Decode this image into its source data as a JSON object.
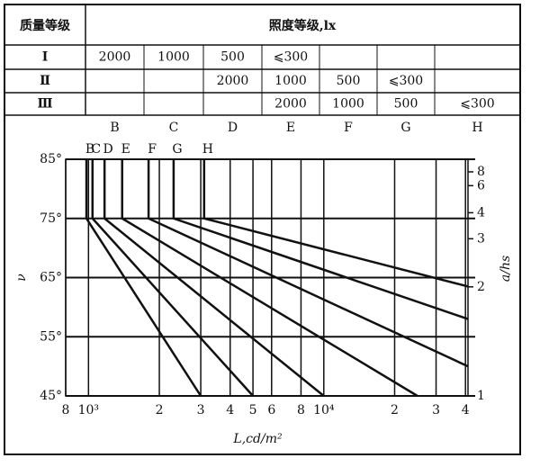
{
  "table": {
    "header": [
      "质量等级",
      "照度等级,lx"
    ],
    "rows": [
      [
        "Ⅰ",
        "2000",
        "1000",
        "500",
        "⩽300",
        null,
        null,
        null
      ],
      [
        "Ⅱ",
        null,
        null,
        "2000",
        "1000",
        "500",
        "⩽300",
        null
      ],
      [
        "Ⅲ",
        null,
        null,
        null,
        "2000",
        "1000",
        "500",
        "⩽300"
      ]
    ],
    "letters": [
      "B",
      "C",
      "D",
      "E",
      "F",
      "G",
      "H"
    ]
  },
  "chart_data": {
    "type": "line",
    "xlabel": "L,cd/m²",
    "ylabel": "ν",
    "y2label": "a/hs",
    "xscale": "log",
    "y2scale": "tan",
    "grid": true,
    "color": "#111111",
    "xlim": [
      800,
      41000
    ],
    "xticks": [
      {
        "value": 800,
        "label": "8"
      },
      {
        "value": 1000,
        "label": "10³"
      },
      {
        "value": 2000,
        "label": "2"
      },
      {
        "value": 3000,
        "label": "3"
      },
      {
        "value": 4000,
        "label": "4"
      },
      {
        "value": 5000,
        "label": "5"
      },
      {
        "value": 6000,
        "label": "6"
      },
      {
        "value": 8000,
        "label": "8"
      },
      {
        "value": 10000,
        "label": "10⁴"
      },
      {
        "value": 20000,
        "label": "2"
      },
      {
        "value": 30000,
        "label": "3"
      },
      {
        "value": 40000,
        "label": "4"
      }
    ],
    "ylim": [
      45,
      85
    ],
    "yticks": [
      {
        "value": 45,
        "label": "45°"
      },
      {
        "value": 55,
        "label": "55°"
      },
      {
        "value": 65,
        "label": "65°"
      },
      {
        "value": 75,
        "label": "75°"
      },
      {
        "value": 85,
        "label": "85°"
      }
    ],
    "y2ticks": [
      1,
      2,
      3,
      4,
      6,
      8
    ],
    "series": [
      {
        "name": "B",
        "x": [
          980,
          980,
          3000
        ],
        "values": [
          85,
          75,
          45
        ]
      },
      {
        "name": "C",
        "x": [
          1040,
          1040,
          5000
        ],
        "values": [
          85,
          75,
          45
        ]
      },
      {
        "name": "D",
        "x": [
          1170,
          1170,
          10000
        ],
        "values": [
          85,
          75,
          45
        ]
      },
      {
        "name": "E",
        "x": [
          1390,
          1390,
          25000
        ],
        "values": [
          85,
          75,
          45
        ]
      },
      {
        "name": "F",
        "x": [
          1800,
          1800,
          41000
        ],
        "values": [
          85,
          75,
          50
        ]
      },
      {
        "name": "G",
        "x": [
          2300,
          2300,
          41000
        ],
        "values": [
          85,
          75,
          58
        ]
      },
      {
        "name": "H",
        "x": [
          3100,
          3100,
          41000
        ],
        "values": [
          85,
          75,
          63.5
        ]
      }
    ]
  }
}
